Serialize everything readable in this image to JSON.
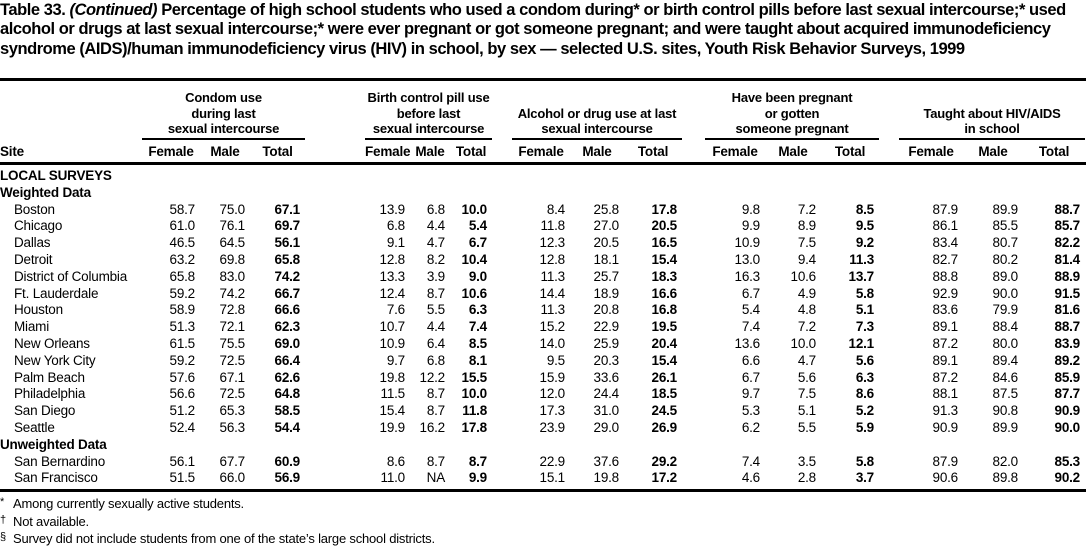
{
  "title": {
    "label": "Table 33.",
    "continued": "(Continued)",
    "text": "Percentage of high school students who used a condom during* or birth control pills before last sexual intercourse;* used alcohol or drugs at last sexual intercourse;* were ever pregnant or got someone pregnant; and were taught about acquired immunodeficiency syndrome (AIDS)/human immunodeficiency virus (HIV) in school, by sex — selected U.S. sites, Youth Risk Behavior Surveys, 1999"
  },
  "table": {
    "site_header": "Site",
    "subheaders": [
      "Female",
      "Male",
      "Total"
    ],
    "column_groups": [
      {
        "label": "Condom use during last sexual intercourse",
        "label_lines": [
          "Condom use",
          "during last",
          "sexual intercourse"
        ]
      },
      {
        "label": "Birth control pill use before last sexual intercourse",
        "label_lines": [
          "Birth control pill use",
          "before last",
          "sexual intercourse"
        ]
      },
      {
        "label": "Alcohol or drug use at last sexual intercourse",
        "label_lines": [
          "Alcohol or drug use at last",
          "sexual intercourse"
        ]
      },
      {
        "label": "Have been pregnant or gotten someone pregnant",
        "label_lines": [
          "Have been pregnant",
          "or gotten",
          "someone pregnant"
        ]
      },
      {
        "label": "Taught about HIV/AIDS in school",
        "label_lines": [
          "Taught about HIV/AIDS",
          "in school"
        ]
      }
    ],
    "sections": [
      {
        "label": "LOCAL SURVEYS",
        "groups": [
          {
            "label": "Weighted Data",
            "rows": [
              {
                "site": "Boston",
                "values": [
                  "58.7",
                  "75.0",
                  "67.1",
                  "13.9",
                  "6.8",
                  "10.0",
                  "8.4",
                  "25.8",
                  "17.8",
                  "9.8",
                  "7.2",
                  "8.5",
                  "87.9",
                  "89.9",
                  "88.7"
                ]
              },
              {
                "site": "Chicago",
                "values": [
                  "61.0",
                  "76.1",
                  "69.7",
                  "6.8",
                  "4.4",
                  "5.4",
                  "11.8",
                  "27.0",
                  "20.5",
                  "9.9",
                  "8.9",
                  "9.5",
                  "86.1",
                  "85.5",
                  "85.7"
                ]
              },
              {
                "site": "Dallas",
                "values": [
                  "46.5",
                  "64.5",
                  "56.1",
                  "9.1",
                  "4.7",
                  "6.7",
                  "12.3",
                  "20.5",
                  "16.5",
                  "10.9",
                  "7.5",
                  "9.2",
                  "83.4",
                  "80.7",
                  "82.2"
                ]
              },
              {
                "site": "Detroit",
                "values": [
                  "63.2",
                  "69.8",
                  "65.8",
                  "12.8",
                  "8.2",
                  "10.4",
                  "12.8",
                  "18.1",
                  "15.4",
                  "13.0",
                  "9.4",
                  "11.3",
                  "82.7",
                  "80.2",
                  "81.4"
                ]
              },
              {
                "site": "District of Columbia",
                "values": [
                  "65.8",
                  "83.0",
                  "74.2",
                  "13.3",
                  "3.9",
                  "9.0",
                  "11.3",
                  "25.7",
                  "18.3",
                  "16.3",
                  "10.6",
                  "13.7",
                  "88.8",
                  "89.0",
                  "88.9"
                ]
              },
              {
                "site": "Ft. Lauderdale",
                "values": [
                  "59.2",
                  "74.2",
                  "66.7",
                  "12.4",
                  "8.7",
                  "10.6",
                  "14.4",
                  "18.9",
                  "16.6",
                  "6.7",
                  "4.9",
                  "5.8",
                  "92.9",
                  "90.0",
                  "91.5"
                ]
              },
              {
                "site": "Houston",
                "values": [
                  "58.9",
                  "72.8",
                  "66.6",
                  "7.6",
                  "5.5",
                  "6.3",
                  "11.3",
                  "20.8",
                  "16.8",
                  "5.4",
                  "4.8",
                  "5.1",
                  "83.6",
                  "79.9",
                  "81.6"
                ]
              },
              {
                "site": "Miami",
                "values": [
                  "51.3",
                  "72.1",
                  "62.3",
                  "10.7",
                  "4.4",
                  "7.4",
                  "15.2",
                  "22.9",
                  "19.5",
                  "7.4",
                  "7.2",
                  "7.3",
                  "89.1",
                  "88.4",
                  "88.7"
                ]
              },
              {
                "site": "New Orleans",
                "values": [
                  "61.5",
                  "75.5",
                  "69.0",
                  "10.9",
                  "6.4",
                  "8.5",
                  "14.0",
                  "25.9",
                  "20.4",
                  "13.6",
                  "10.0",
                  "12.1",
                  "87.2",
                  "80.0",
                  "83.9"
                ]
              },
              {
                "site": "New York City",
                "values": [
                  "59.2",
                  "72.5",
                  "66.4",
                  "9.7",
                  "6.8",
                  "8.1",
                  "9.5",
                  "20.3",
                  "15.4",
                  "6.6",
                  "4.7",
                  "5.6",
                  "89.1",
                  "89.4",
                  "89.2"
                ]
              },
              {
                "site": "Palm Beach",
                "values": [
                  "57.6",
                  "67.1",
                  "62.6",
                  "19.8",
                  "12.2",
                  "15.5",
                  "15.9",
                  "33.6",
                  "26.1",
                  "6.7",
                  "5.6",
                  "6.3",
                  "87.2",
                  "84.6",
                  "85.9"
                ]
              },
              {
                "site": "Philadelphia",
                "values": [
                  "56.6",
                  "72.5",
                  "64.8",
                  "11.5",
                  "8.7",
                  "10.0",
                  "12.0",
                  "24.4",
                  "18.5",
                  "9.7",
                  "7.5",
                  "8.6",
                  "88.1",
                  "87.5",
                  "87.7"
                ]
              },
              {
                "site": "San Diego",
                "values": [
                  "51.2",
                  "65.3",
                  "58.5",
                  "15.4",
                  "8.7",
                  "11.8",
                  "17.3",
                  "31.0",
                  "24.5",
                  "5.3",
                  "5.1",
                  "5.2",
                  "91.3",
                  "90.8",
                  "90.9"
                ]
              },
              {
                "site": "Seattle",
                "values": [
                  "52.4",
                  "56.3",
                  "54.4",
                  "19.9",
                  "16.2",
                  "17.8",
                  "23.9",
                  "29.0",
                  "26.9",
                  "6.2",
                  "5.5",
                  "5.9",
                  "90.9",
                  "89.9",
                  "90.0"
                ]
              }
            ]
          },
          {
            "label": "Unweighted Data",
            "rows": [
              {
                "site": "San Bernardino",
                "values": [
                  "56.1",
                  "67.7",
                  "60.9",
                  "8.6",
                  "8.7",
                  "8.7",
                  "22.9",
                  "37.6",
                  "29.2",
                  "7.4",
                  "3.5",
                  "5.8",
                  "87.9",
                  "82.0",
                  "85.3"
                ]
              },
              {
                "site": "San Francisco",
                "values": [
                  "51.5",
                  "66.0",
                  "56.9",
                  "11.0",
                  "NA",
                  "9.9",
                  "15.1",
                  "19.8",
                  "17.2",
                  "4.6",
                  "2.8",
                  "3.7",
                  "90.6",
                  "89.8",
                  "90.2"
                ]
              }
            ]
          }
        ]
      }
    ]
  },
  "footnotes": [
    {
      "symbol": "*",
      "text": "Among currently sexually active students."
    },
    {
      "symbol": "†",
      "text": "Not available."
    },
    {
      "symbol": "§",
      "text": "Survey did not include students from one of the state’s large school districts."
    }
  ]
}
